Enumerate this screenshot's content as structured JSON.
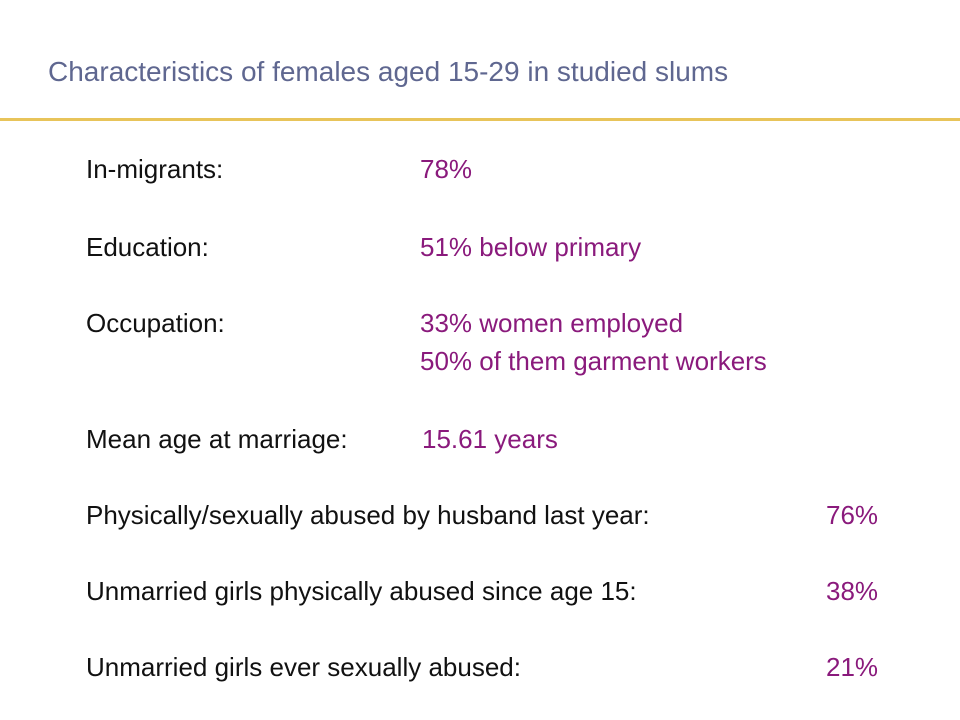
{
  "title": "Characteristics of females aged 15-29 in studied slums",
  "accent_colors": {
    "title": "#5f6790",
    "rule": "#e8c45a",
    "value": "#8a1a7c"
  },
  "rows": [
    {
      "label": "In-migrants:",
      "values": [
        "78%"
      ]
    },
    {
      "label": "Education:",
      "values": [
        "51% below primary"
      ]
    },
    {
      "label": "Occupation:",
      "values": [
        "33% women employed",
        "50% of them garment workers"
      ]
    },
    {
      "label": "Mean age at marriage:",
      "values": [
        "15.61 years"
      ]
    },
    {
      "label": "Physically/sexually abused by husband last year:",
      "values": [
        "76%"
      ]
    },
    {
      "label": "Unmarried girls physically abused since age 15:",
      "values": [
        "38%"
      ]
    },
    {
      "label": "Unmarried girls ever sexually abused:",
      "values": [
        "21%"
      ]
    }
  ]
}
